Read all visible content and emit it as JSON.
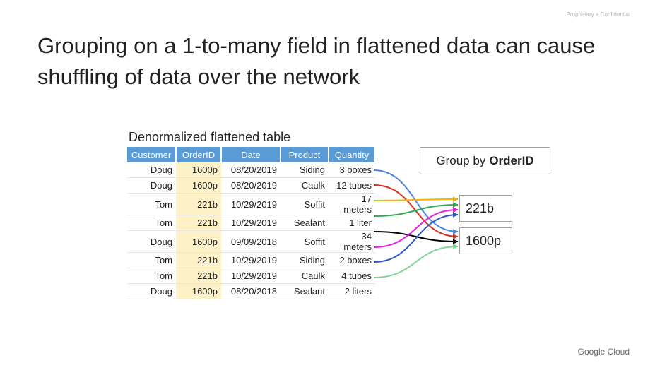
{
  "confidential": "Proprietary + Confidential",
  "title": "Grouping on a 1-to-many field in flattened data can cause shuffling of data over the network",
  "table": {
    "caption": "Denormalized flattened table",
    "headers": [
      "Customer",
      "OrderID",
      "Date",
      "Product",
      "Quantity"
    ],
    "rows": [
      [
        "Doug",
        "1600p",
        "08/20/2019",
        "Siding",
        "3 boxes"
      ],
      [
        "Doug",
        "1600p",
        "08/20/2019",
        "Caulk",
        "12 tubes"
      ],
      [
        "Tom",
        "221b",
        "10/29/2019",
        "Soffit",
        "17 meters"
      ],
      [
        "Tom",
        "221b",
        "10/29/2019",
        "Sealant",
        "1 liter"
      ],
      [
        "Doug",
        "1600p",
        "09/09/2018",
        "Soffit",
        "34 meters"
      ],
      [
        "Tom",
        "221b",
        "10/29/2019",
        "Siding",
        "2 boxes"
      ],
      [
        "Tom",
        "221b",
        "10/29/2019",
        "Caulk",
        "4 tubes"
      ],
      [
        "Doug",
        "1600p",
        "08/20/2018",
        "Sealant",
        "2 liters"
      ]
    ]
  },
  "group_by": {
    "prefix": "Group by",
    "field": "OrderID"
  },
  "groups": [
    "221b",
    "1600p"
  ],
  "arrow_colors": [
    "#4a86e8",
    "#d93025",
    "#f4b400",
    "#34a853",
    "#000000",
    "#e81ee0",
    "#2a56c6",
    "#7ed491"
  ],
  "arrow_targets": [
    1,
    1,
    0,
    0,
    1,
    0,
    0,
    1
  ],
  "logo": "Google Cloud"
}
